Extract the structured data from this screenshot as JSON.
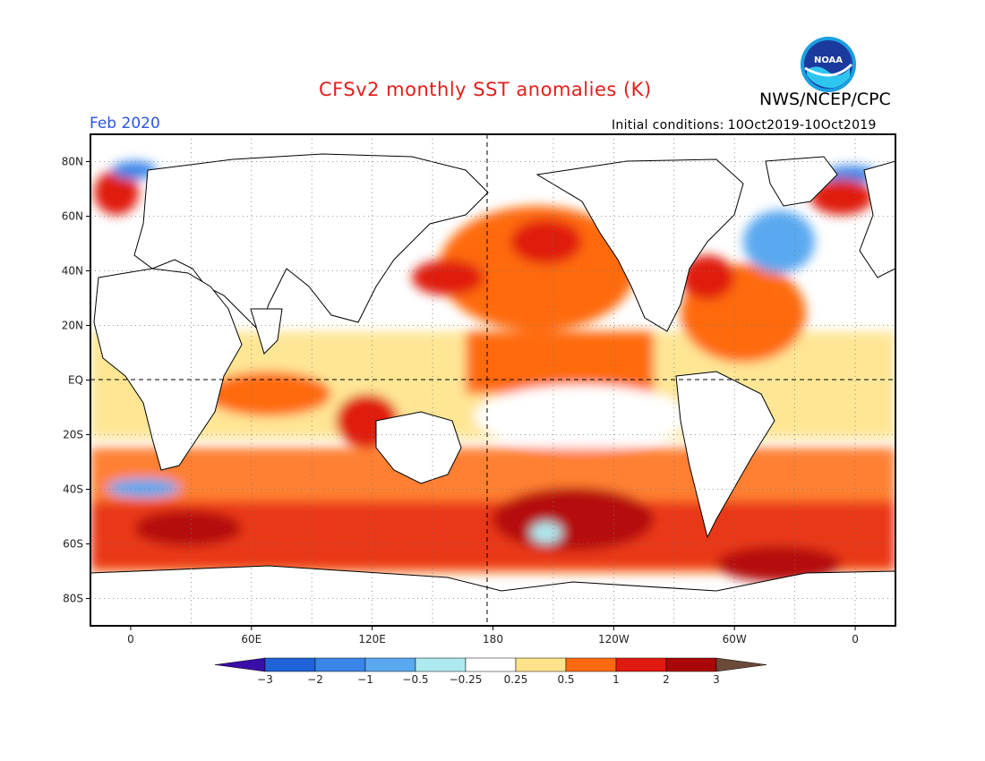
{
  "header": {
    "title": "CFSv2 monthly SST anomalies (K)",
    "agency": "NWS/NCEP/CPC",
    "forecast_month": "Feb 2020",
    "initial_conditions_label": "Initial conditions:",
    "initial_conditions_value": "10Oct2019-10Oct2019",
    "logo_text": "NOAA"
  },
  "map": {
    "lat_labels": [
      "80N",
      "60N",
      "40N",
      "20N",
      "EQ",
      "20S",
      "40S",
      "60S",
      "80S"
    ],
    "lat_values": [
      80,
      60,
      40,
      20,
      0,
      -20,
      -40,
      -60,
      -80
    ],
    "lon_labels": [
      "0",
      "60E",
      "120E",
      "180",
      "120W",
      "60W",
      "0"
    ],
    "lon_values": [
      0,
      60,
      120,
      180,
      240,
      300,
      360
    ],
    "lon_range": [
      -20,
      380
    ],
    "lat_range": [
      -90,
      90
    ],
    "colors": {
      "land": "#ffffff",
      "coast": "#000000",
      "grid": "#777777",
      "frame": "#000000"
    }
  },
  "colorbar": {
    "tick_labels": [
      "-3",
      "-2",
      "-1",
      "-0.5",
      "-0.25",
      "0.25",
      "0.5",
      "1",
      "2",
      "3"
    ],
    "colors": [
      "#3a0ea8",
      "#1f63d6",
      "#3a86e8",
      "#5aa9f0",
      "#aee9ef",
      "#ffffff",
      "#ffe38a",
      "#ff6a10",
      "#e01a10",
      "#a80808",
      "#6b4a3a"
    ]
  }
}
